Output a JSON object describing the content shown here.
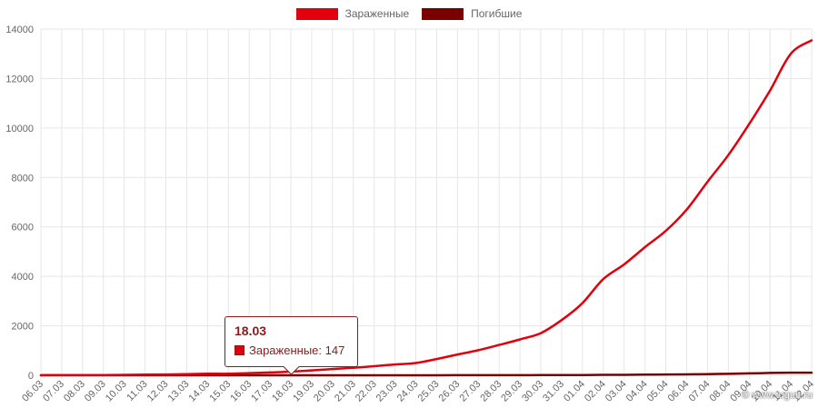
{
  "chart_data": {
    "type": "line",
    "title": "",
    "xlabel": "",
    "ylabel": "",
    "ylim": [
      0,
      14000
    ],
    "y_ticks": [
      0,
      2000,
      4000,
      6000,
      8000,
      10000,
      12000,
      14000
    ],
    "grid": true,
    "legend_position": "top-center",
    "categories": [
      "06.03",
      "07.03",
      "08.03",
      "09.03",
      "10.03",
      "11.03",
      "12.03",
      "13.03",
      "14.03",
      "15.03",
      "16.03",
      "17.03",
      "18.03",
      "19.03",
      "20.03",
      "21.03",
      "22.03",
      "23.03",
      "24.03",
      "25.03",
      "26.03",
      "27.03",
      "28.03",
      "29.03",
      "30.03",
      "31.03",
      "01.04",
      "02.04",
      "03.04",
      "04.04",
      "05.04",
      "06.04",
      "07.04",
      "08.04",
      "09.04",
      "10.04",
      "11.04",
      "12.04"
    ],
    "series": [
      {
        "name": "Зараженные",
        "color": "#e2000d",
        "values": [
          4,
          10,
          10,
          10,
          20,
          28,
          34,
          45,
          63,
          63,
          90,
          114,
          147,
          199,
          253,
          306,
          367,
          438,
          495,
          658,
          840,
          1014,
          1226,
          1452,
          1706,
          2235,
          2923,
          3893,
          4484,
          5181,
          5841,
          6698,
          7822,
          8904,
          10158,
          11513,
          13002,
          13545
        ]
      },
      {
        "name": "Погибшие",
        "color": "#7a0000",
        "values": [
          0,
          0,
          0,
          0,
          0,
          0,
          0,
          0,
          0,
          0,
          0,
          0,
          0,
          0,
          0,
          0,
          0,
          0,
          1,
          1,
          3,
          4,
          5,
          5,
          8,
          9,
          10,
          17,
          17,
          26,
          33,
          38,
          48,
          58,
          76,
          94,
          106,
          106
        ]
      }
    ]
  },
  "tooltip": {
    "title": "18.03",
    "label": "Зараженные: 147",
    "color_box": "#e2000d"
  },
  "watermark": "© www.tugun.ru"
}
